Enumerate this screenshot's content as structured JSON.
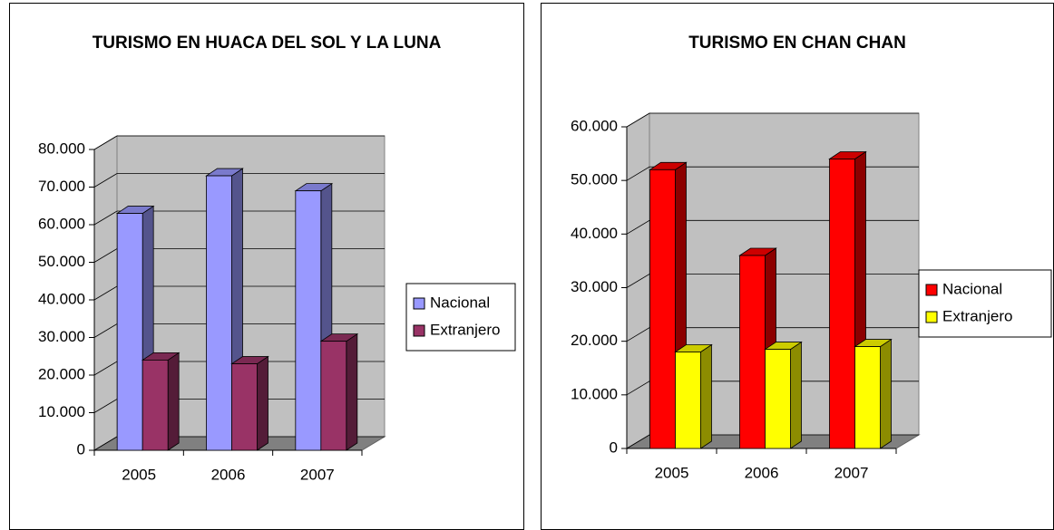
{
  "chart_data": [
    {
      "type": "bar3d",
      "title": "TURISMO EN HUACA DEL SOL Y LA LUNA",
      "categories": [
        "2005",
        "2006",
        "2007"
      ],
      "series": [
        {
          "name": "Nacional",
          "color": "#9999ff",
          "values": [
            63000,
            73000,
            69000
          ]
        },
        {
          "name": "Extranjero",
          "color": "#993366",
          "values": [
            24000,
            23000,
            29000
          ]
        }
      ],
      "ylim": [
        0,
        80000
      ],
      "yticks": [
        0,
        {
          "value": 10000,
          "label": "10.000"
        },
        {
          "value": 20000,
          "label": "20.000"
        },
        {
          "value": 30000,
          "label": "30.000"
        },
        {
          "value": 40000,
          "label": "40.000"
        },
        {
          "value": 50000,
          "label": "50.000"
        },
        {
          "value": 60000,
          "label": "60.000"
        },
        {
          "value": 70000,
          "label": "70.000"
        },
        {
          "value": 80000,
          "label": "80.000"
        }
      ],
      "grid": true,
      "legend": "right"
    },
    {
      "type": "bar3d",
      "title": "TURISMO EN CHAN CHAN",
      "categories": [
        "2005",
        "2006",
        "2007"
      ],
      "series": [
        {
          "name": "Nacional",
          "color": "#ff0000",
          "values": [
            52000,
            36000,
            54000
          ]
        },
        {
          "name": "Extranjero",
          "color": "#ffff00",
          "values": [
            18000,
            18500,
            19000
          ]
        }
      ],
      "ylim": [
        0,
        60000
      ],
      "yticks": [
        0,
        {
          "value": 10000,
          "label": "10.000"
        },
        {
          "value": 20000,
          "label": "20.000"
        },
        {
          "value": 30000,
          "label": "30.000"
        },
        {
          "value": 40000,
          "label": "40.000"
        },
        {
          "value": 50000,
          "label": "50.000"
        },
        {
          "value": 60000,
          "label": "60.000"
        }
      ],
      "grid": true,
      "legend": "right"
    }
  ]
}
